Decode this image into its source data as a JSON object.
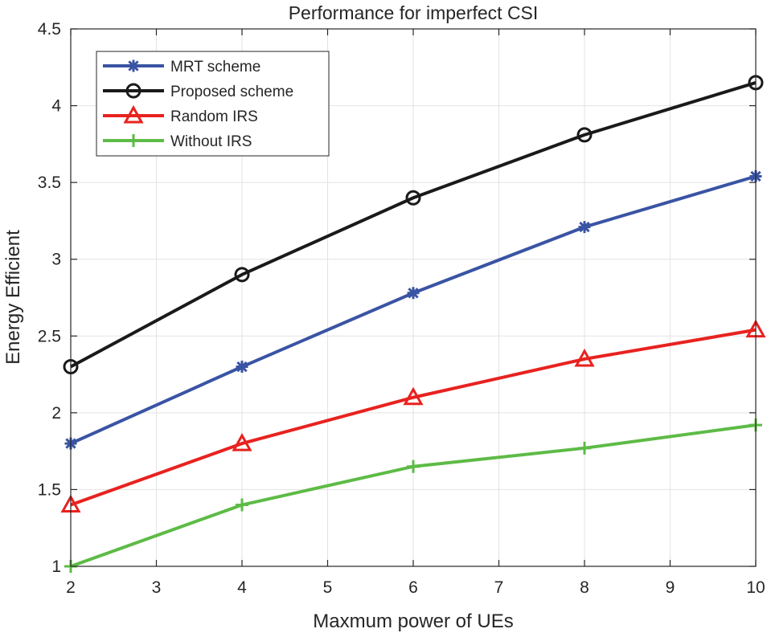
{
  "chart_data": {
    "type": "line",
    "title": "Performance for imperfect CSI",
    "xlabel": "Maxmum power of UEs",
    "ylabel": "Energy Efficient",
    "xlim": [
      2,
      10
    ],
    "ylim": [
      1,
      4.5
    ],
    "xticks": [
      2,
      3,
      4,
      5,
      6,
      7,
      8,
      9,
      10
    ],
    "yticks": [
      1,
      1.5,
      2,
      2.5,
      3,
      3.5,
      4,
      4.5
    ],
    "grid": true,
    "legend_position": "top-left",
    "x": [
      2,
      4,
      6,
      8,
      10
    ],
    "series": [
      {
        "name": "MRT scheme",
        "marker": "asterisk",
        "color": "#3a54a4",
        "values": [
          1.8,
          2.3,
          2.78,
          3.21,
          3.54
        ]
      },
      {
        "name": "Proposed scheme",
        "marker": "circle",
        "color": "#1a1a1a",
        "values": [
          2.3,
          2.9,
          3.4,
          3.81,
          4.15
        ]
      },
      {
        "name": "Random IRS",
        "marker": "triangle",
        "color": "#e8221f",
        "values": [
          1.4,
          1.8,
          2.1,
          2.35,
          2.54
        ]
      },
      {
        "name": "Without IRS",
        "marker": "plus",
        "color": "#5dbb46",
        "values": [
          1.0,
          1.4,
          1.65,
          1.77,
          1.92
        ]
      }
    ]
  }
}
